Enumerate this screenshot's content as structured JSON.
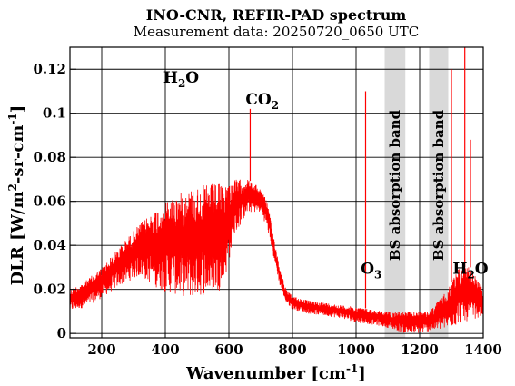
{
  "chart_data": {
    "type": "line",
    "title": "INO-CNR, REFIR-PAD spectrum",
    "subtitle": "Measurement data: 20250720_0650 UTC",
    "xlabel": {
      "main": "Wavenumber [cm",
      "sup": "-1",
      "end": "]"
    },
    "ylabel": {
      "p1": "DLR [W/m",
      "sup1": "2",
      "p2": "-sr-cm",
      "sup2": "-1",
      "p3": "]"
    },
    "xlim": [
      100,
      1400
    ],
    "ylim": [
      -0.002,
      0.13
    ],
    "xticks": [
      200,
      400,
      600,
      800,
      1000,
      1200,
      1400
    ],
    "xtick_labels": [
      "200",
      "400",
      "600",
      "800",
      "1000",
      "1200",
      "1400"
    ],
    "yticks": [
      0,
      0.02,
      0.04,
      0.06,
      0.08,
      0.1,
      0.12
    ],
    "ytick_labels": [
      "0",
      "0.02",
      "0.04",
      "0.06",
      "0.08",
      "0.1",
      "0.12"
    ],
    "grid": true,
    "line_color": "#ff0000",
    "band_color": "#d9d9d9",
    "bands": [
      {
        "x0": 1090,
        "x1": 1155,
        "label": "BS absorption band"
      },
      {
        "x0": 1230,
        "x1": 1290,
        "label": "BS absorption band"
      }
    ],
    "annotations": [
      {
        "name": "h2o-left",
        "base": "H",
        "sub": "2",
        "after": "O",
        "x": 450,
        "y": 0.114
      },
      {
        "name": "co2",
        "base": "CO",
        "sub": "2",
        "after": "",
        "x": 705,
        "y": 0.104
      },
      {
        "name": "o3",
        "base": "O",
        "sub": "3",
        "after": "",
        "x": 1048,
        "y": 0.027
      },
      {
        "name": "h2o-right",
        "base": "H",
        "sub": "2",
        "after": "O",
        "x": 1360,
        "y": 0.027
      }
    ],
    "envelope": {
      "x": [
        100,
        150,
        200,
        260,
        320,
        380,
        420,
        480,
        540,
        580,
        620,
        660,
        700,
        720,
        740,
        760,
        780,
        800,
        850,
        900,
        950,
        1000,
        1050,
        1090,
        1155,
        1200,
        1230,
        1290,
        1320,
        1360,
        1400
      ],
      "upper": [
        0.02,
        0.024,
        0.03,
        0.04,
        0.05,
        0.058,
        0.062,
        0.066,
        0.068,
        0.068,
        0.07,
        0.07,
        0.066,
        0.06,
        0.045,
        0.03,
        0.02,
        0.017,
        0.015,
        0.014,
        0.013,
        0.012,
        0.011,
        0.01,
        0.01,
        0.01,
        0.01,
        0.02,
        0.03,
        0.03,
        0.02
      ],
      "lower": [
        0.01,
        0.012,
        0.016,
        0.022,
        0.026,
        0.02,
        0.018,
        0.016,
        0.018,
        0.02,
        0.045,
        0.055,
        0.055,
        0.048,
        0.035,
        0.022,
        0.014,
        0.011,
        0.009,
        0.008,
        0.007,
        0.005,
        0.004,
        0.003,
        0.0,
        0.0,
        0.001,
        0.002,
        0.004,
        0.006,
        0.008
      ]
    },
    "spikes": [
      {
        "x": 667,
        "y": 0.102
      },
      {
        "x": 1030,
        "y": 0.11
      },
      {
        "x": 1300,
        "y": 0.12
      },
      {
        "x": 1342,
        "y": 0.13
      },
      {
        "x": 1360,
        "y": 0.088
      }
    ]
  }
}
